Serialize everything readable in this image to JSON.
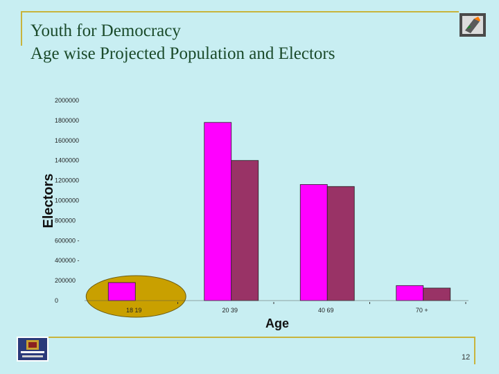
{
  "slide": {
    "title_line1": "Youth for Democracy",
    "title_line2": "Age wise Projected Population and Electors",
    "page_number": "12"
  },
  "icons": {
    "top_right": "ballot-box-icon",
    "bottom_left": "emblem-logo-icon"
  },
  "colors": {
    "population": "#ff00ff",
    "electors": "#993366",
    "highlight": "#c9a000",
    "frame": "#c8b43c"
  },
  "chart_data": {
    "type": "bar",
    "categories": [
      "18 19",
      "20 39",
      "40 69",
      "70 +"
    ],
    "series": [
      {
        "values": [
          180000,
          1780000,
          1160000,
          150000
        ]
      },
      {
        "values": [
          0,
          1400000,
          1140000,
          125000
        ]
      }
    ],
    "xlabel": "Age",
    "ylabel": "Electors",
    "ylim": [
      0,
      2000000
    ],
    "yticks": [
      {
        "value": 0,
        "label": "0"
      },
      {
        "value": 200000,
        "label": "200000"
      },
      {
        "value": 400000,
        "label": "400000 -"
      },
      {
        "value": 600000,
        "label": "600000 -"
      },
      {
        "value": 800000,
        "label": "800000"
      },
      {
        "value": 1000000,
        "label": "1000000"
      },
      {
        "value": 1200000,
        "label": "1200000"
      },
      {
        "value": 1400000,
        "label": "1400000"
      },
      {
        "value": 1600000,
        "label": "1600000"
      },
      {
        "value": 1800000,
        "label": "1800000"
      },
      {
        "value": 2000000,
        "label": "2000000"
      }
    ],
    "highlighted_category": "18 19",
    "grid": false,
    "legend": "none"
  }
}
